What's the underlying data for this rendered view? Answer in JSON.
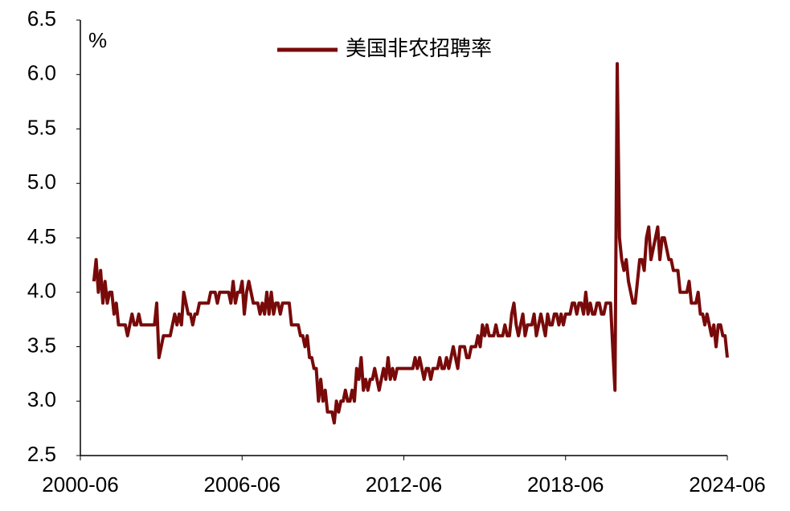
{
  "chart_data": {
    "type": "line",
    "y_label": "%",
    "x": [
      "2000-12",
      "2001-01",
      "2001-02",
      "2001-03",
      "2001-04",
      "2001-05",
      "2001-06",
      "2001-07",
      "2001-08",
      "2001-09",
      "2001-10",
      "2001-11",
      "2001-12",
      "2002-01",
      "2002-02",
      "2002-03",
      "2002-04",
      "2002-05",
      "2002-06",
      "2002-07",
      "2002-08",
      "2002-09",
      "2002-10",
      "2002-11",
      "2002-12",
      "2003-01",
      "2003-02",
      "2003-03",
      "2003-04",
      "2003-05",
      "2003-06",
      "2003-07",
      "2003-08",
      "2003-09",
      "2003-10",
      "2003-11",
      "2003-12",
      "2004-01",
      "2004-02",
      "2004-03",
      "2004-04",
      "2004-05",
      "2004-06",
      "2004-07",
      "2004-08",
      "2004-09",
      "2004-10",
      "2004-11",
      "2004-12",
      "2005-01",
      "2005-02",
      "2005-03",
      "2005-04",
      "2005-05",
      "2005-06",
      "2005-07",
      "2005-08",
      "2005-09",
      "2005-10",
      "2005-11",
      "2005-12",
      "2006-01",
      "2006-02",
      "2006-03",
      "2006-04",
      "2006-05",
      "2006-06",
      "2006-07",
      "2006-08",
      "2006-09",
      "2006-10",
      "2006-11",
      "2006-12",
      "2007-01",
      "2007-02",
      "2007-03",
      "2007-04",
      "2007-05",
      "2007-06",
      "2007-07",
      "2007-08",
      "2007-09",
      "2007-10",
      "2007-11",
      "2007-12",
      "2008-01",
      "2008-02",
      "2008-03",
      "2008-04",
      "2008-05",
      "2008-06",
      "2008-07",
      "2008-08",
      "2008-09",
      "2008-10",
      "2008-11",
      "2008-12",
      "2009-01",
      "2009-02",
      "2009-03",
      "2009-04",
      "2009-05",
      "2009-06",
      "2009-07",
      "2009-08",
      "2009-09",
      "2009-10",
      "2009-11",
      "2009-12",
      "2010-01",
      "2010-02",
      "2010-03",
      "2010-04",
      "2010-05",
      "2010-06",
      "2010-07",
      "2010-08",
      "2010-09",
      "2010-10",
      "2010-11",
      "2010-12",
      "2011-01",
      "2011-02",
      "2011-03",
      "2011-04",
      "2011-05",
      "2011-06",
      "2011-07",
      "2011-08",
      "2011-09",
      "2011-10",
      "2011-11",
      "2011-12",
      "2012-01",
      "2012-02",
      "2012-03",
      "2012-04",
      "2012-05",
      "2012-06",
      "2012-07",
      "2012-08",
      "2012-09",
      "2012-10",
      "2012-11",
      "2012-12",
      "2013-01",
      "2013-02",
      "2013-03",
      "2013-04",
      "2013-05",
      "2013-06",
      "2013-07",
      "2013-08",
      "2013-09",
      "2013-10",
      "2013-11",
      "2013-12",
      "2014-01",
      "2014-02",
      "2014-03",
      "2014-04",
      "2014-05",
      "2014-06",
      "2014-07",
      "2014-08",
      "2014-09",
      "2014-10",
      "2014-11",
      "2014-12",
      "2015-01",
      "2015-02",
      "2015-03",
      "2015-04",
      "2015-05",
      "2015-06",
      "2015-07",
      "2015-08",
      "2015-09",
      "2015-10",
      "2015-11",
      "2015-12",
      "2016-01",
      "2016-02",
      "2016-03",
      "2016-04",
      "2016-05",
      "2016-06",
      "2016-07",
      "2016-08",
      "2016-09",
      "2016-10",
      "2016-11",
      "2016-12",
      "2017-01",
      "2017-02",
      "2017-03",
      "2017-04",
      "2017-05",
      "2017-06",
      "2017-07",
      "2017-08",
      "2017-09",
      "2017-10",
      "2017-11",
      "2017-12",
      "2018-01",
      "2018-02",
      "2018-03",
      "2018-04",
      "2018-05",
      "2018-06",
      "2018-07",
      "2018-08",
      "2018-09",
      "2018-10",
      "2018-11",
      "2018-12",
      "2019-01",
      "2019-02",
      "2019-03",
      "2019-04",
      "2019-05",
      "2019-06",
      "2019-07",
      "2019-08",
      "2019-09",
      "2019-10",
      "2019-11",
      "2019-12",
      "2020-01",
      "2020-02",
      "2020-03",
      "2020-04",
      "2020-05",
      "2020-06",
      "2020-07",
      "2020-08",
      "2020-09",
      "2020-10",
      "2020-11",
      "2020-12",
      "2021-01",
      "2021-02",
      "2021-03",
      "2021-04",
      "2021-05",
      "2021-06",
      "2021-07",
      "2021-08",
      "2021-09",
      "2021-10",
      "2021-11",
      "2021-12",
      "2022-01",
      "2022-02",
      "2022-03",
      "2022-04",
      "2022-05",
      "2022-06",
      "2022-07",
      "2022-08",
      "2022-09",
      "2022-10",
      "2022-11",
      "2022-12",
      "2023-01",
      "2023-02",
      "2023-03",
      "2023-04",
      "2023-05",
      "2023-06",
      "2023-07",
      "2023-08",
      "2023-09",
      "2023-10",
      "2023-11",
      "2023-12",
      "2024-01",
      "2024-02",
      "2024-03",
      "2024-04",
      "2024-05",
      "2024-06"
    ],
    "series": [
      {
        "name": "美国非农招聘率",
        "color": "#780a0a",
        "values": [
          4.1,
          4.3,
          4.0,
          4.2,
          3.9,
          4.1,
          3.9,
          4.0,
          4.0,
          3.8,
          3.9,
          3.7,
          3.7,
          3.7,
          3.7,
          3.6,
          3.7,
          3.8,
          3.7,
          3.7,
          3.8,
          3.7,
          3.7,
          3.7,
          3.7,
          3.7,
          3.7,
          3.7,
          3.9,
          3.4,
          3.5,
          3.6,
          3.6,
          3.6,
          3.6,
          3.7,
          3.8,
          3.7,
          3.8,
          3.7,
          4.0,
          3.9,
          3.8,
          3.8,
          3.7,
          3.8,
          3.8,
          3.9,
          3.9,
          3.9,
          3.9,
          3.9,
          4.0,
          4.0,
          4.0,
          3.9,
          4.0,
          4.0,
          4.0,
          4.0,
          4.0,
          3.9,
          4.1,
          3.9,
          4.0,
          4.0,
          4.1,
          3.8,
          4.0,
          4.1,
          4.0,
          3.9,
          3.9,
          3.9,
          3.8,
          3.9,
          3.8,
          4.0,
          3.8,
          4.0,
          3.8,
          3.9,
          3.9,
          3.8,
          3.9,
          3.9,
          3.9,
          3.9,
          3.7,
          3.7,
          3.7,
          3.7,
          3.6,
          3.6,
          3.5,
          3.6,
          3.4,
          3.4,
          3.3,
          3.3,
          3.0,
          3.2,
          3.0,
          3.1,
          2.9,
          2.9,
          2.9,
          2.8,
          3.0,
          2.9,
          3.0,
          3.0,
          3.1,
          3.0,
          3.0,
          3.1,
          3.0,
          3.3,
          3.2,
          3.4,
          3.1,
          3.2,
          3.1,
          3.2,
          3.2,
          3.3,
          3.2,
          3.1,
          3.2,
          3.3,
          3.2,
          3.4,
          3.2,
          3.3,
          3.2,
          3.3,
          3.3,
          3.3,
          3.3,
          3.3,
          3.3,
          3.3,
          3.3,
          3.4,
          3.3,
          3.4,
          3.3,
          3.2,
          3.3,
          3.3,
          3.2,
          3.3,
          3.3,
          3.3,
          3.4,
          3.3,
          3.3,
          3.4,
          3.3,
          3.4,
          3.5,
          3.4,
          3.3,
          3.5,
          3.5,
          3.5,
          3.4,
          3.4,
          3.5,
          3.5,
          3.5,
          3.6,
          3.5,
          3.7,
          3.6,
          3.7,
          3.6,
          3.6,
          3.6,
          3.7,
          3.6,
          3.6,
          3.6,
          3.7,
          3.6,
          3.6,
          3.8,
          3.9,
          3.7,
          3.6,
          3.7,
          3.8,
          3.6,
          3.7,
          3.7,
          3.7,
          3.8,
          3.6,
          3.7,
          3.8,
          3.7,
          3.6,
          3.8,
          3.7,
          3.7,
          3.8,
          3.8,
          3.7,
          3.8,
          3.7,
          3.8,
          3.8,
          3.8,
          3.9,
          3.9,
          3.8,
          3.9,
          3.9,
          3.8,
          4.0,
          3.8,
          3.9,
          3.8,
          3.8,
          3.9,
          3.9,
          3.8,
          3.8,
          3.9,
          3.9,
          3.9,
          3.5,
          3.1,
          6.1,
          4.5,
          4.3,
          4.2,
          4.3,
          4.1,
          4.0,
          3.9,
          3.9,
          4.1,
          4.3,
          4.3,
          4.2,
          4.5,
          4.6,
          4.3,
          4.4,
          4.5,
          4.6,
          4.3,
          4.5,
          4.5,
          4.4,
          4.3,
          4.3,
          4.2,
          4.2,
          4.2,
          4.0,
          4.0,
          4.0,
          4.0,
          4.1,
          3.9,
          3.9,
          3.9,
          4.0,
          3.8,
          3.8,
          3.7,
          3.8,
          3.7,
          3.6,
          3.7,
          3.5,
          3.7,
          3.7,
          3.6,
          3.6,
          3.4
        ]
      }
    ],
    "xlim": [
      "2000-06",
      "2024-06"
    ],
    "xticks": [
      "2000-06",
      "2006-06",
      "2012-06",
      "2018-06",
      "2024-06"
    ],
    "ylim": [
      2.5,
      6.5
    ],
    "yticks": [
      {
        "value": 2.5,
        "label": "2.5"
      },
      {
        "value": 3,
        "label": "3.0"
      },
      {
        "value": 3.5,
        "label": "3.5"
      },
      {
        "value": 4,
        "label": "4.0"
      },
      {
        "value": 4.5,
        "label": "4.5"
      },
      {
        "value": 5,
        "label": "5.0"
      },
      {
        "value": 5.5,
        "label": "5.5"
      },
      {
        "value": 6,
        "label": "6.0"
      },
      {
        "value": 6.5,
        "label": "6.5"
      }
    ],
    "grid": false,
    "legend": "top"
  }
}
